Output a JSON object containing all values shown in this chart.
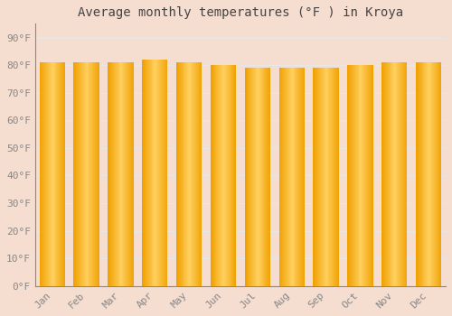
{
  "title": "Average monthly temperatures (°F ) in Kroya",
  "months": [
    "Jan",
    "Feb",
    "Mar",
    "Apr",
    "May",
    "Jun",
    "Jul",
    "Aug",
    "Sep",
    "Oct",
    "Nov",
    "Dec"
  ],
  "values": [
    81,
    81,
    81,
    82,
    81,
    80,
    79,
    79,
    79,
    80,
    81,
    81
  ],
  "bar_color_center": "#FFD060",
  "bar_color_edge": "#F0A000",
  "background_color": "#F5DDD0",
  "plot_bg_color": "#F5DDD0",
  "grid_color": "#E8E8E8",
  "ytick_labels": [
    "0°F",
    "10°F",
    "20°F",
    "30°F",
    "40°F",
    "50°F",
    "60°F",
    "70°F",
    "80°F",
    "90°F"
  ],
  "ytick_values": [
    0,
    10,
    20,
    30,
    40,
    50,
    60,
    70,
    80,
    90
  ],
  "ylim": [
    0,
    95
  ],
  "title_fontsize": 10,
  "tick_fontsize": 8,
  "title_color": "#444444",
  "tick_color": "#888888",
  "bar_width": 0.75,
  "spine_color": "#888888"
}
